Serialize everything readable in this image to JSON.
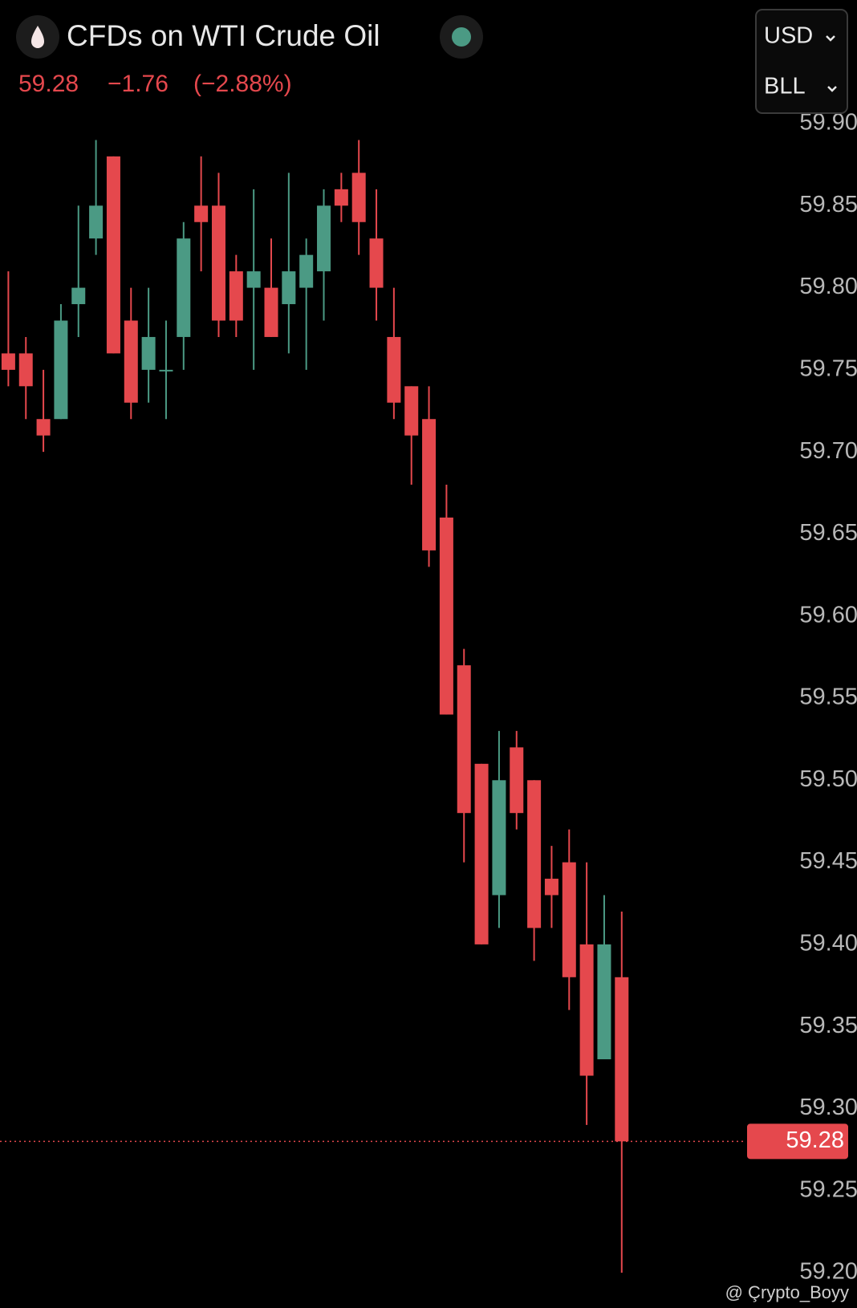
{
  "header": {
    "title": "CFDs on WTI Crude Oil",
    "change": "−1.76",
    "change_percent": "(−2.88%)",
    "currency": "USD",
    "unit": "BLL"
  },
  "watermark": "@ Çrypto_Boyy",
  "chart_data": {
    "type": "candlestick",
    "last_price": 59.28,
    "up_color": "#4b9a84",
    "down_color": "#e5484d",
    "ylim": [
      59.2,
      59.9
    ],
    "yticks": [
      {
        "value": 59.2,
        "label": "59.20"
      },
      59.25,
      {
        "value": 59.3,
        "label": "59.30"
      },
      59.35,
      {
        "value": 59.4,
        "label": "59.40"
      },
      59.45,
      {
        "value": 59.5,
        "label": "59.50"
      },
      59.55,
      {
        "value": 59.6,
        "label": "59.60"
      },
      59.65,
      {
        "value": 59.7,
        "label": "59.70"
      },
      59.75,
      {
        "value": 59.8,
        "label": "59.80"
      },
      59.85,
      {
        "value": 59.9,
        "label": "59.90"
      }
    ],
    "open": [
      59.76,
      59.76,
      59.72,
      59.72,
      59.79,
      59.83,
      59.88,
      59.78,
      59.75,
      59.75,
      59.77,
      59.85,
      59.85,
      59.81,
      59.8,
      59.8,
      59.79,
      59.8,
      59.81,
      59.86,
      59.87,
      59.83,
      59.77,
      59.74,
      59.72,
      59.66,
      59.57,
      59.51,
      59.43,
      59.52,
      59.5,
      59.44,
      59.45,
      59.4,
      59.33,
      59.38
    ],
    "high": [
      59.81,
      59.77,
      59.75,
      59.79,
      59.85,
      59.89,
      59.88,
      59.8,
      59.8,
      59.78,
      59.84,
      59.88,
      59.87,
      59.82,
      59.86,
      59.83,
      59.87,
      59.83,
      59.86,
      59.87,
      59.89,
      59.86,
      59.8,
      59.74,
      59.74,
      59.68,
      59.58,
      59.51,
      59.53,
      59.53,
      59.5,
      59.46,
      59.47,
      59.45,
      59.43,
      59.42
    ],
    "low": [
      59.74,
      59.72,
      59.7,
      59.72,
      59.77,
      59.82,
      59.76,
      59.72,
      59.73,
      59.72,
      59.75,
      59.81,
      59.77,
      59.77,
      59.75,
      59.77,
      59.76,
      59.75,
      59.78,
      59.84,
      59.82,
      59.78,
      59.72,
      59.68,
      59.63,
      59.54,
      59.45,
      59.4,
      59.41,
      59.47,
      59.39,
      59.41,
      59.36,
      59.29,
      59.33,
      59.2
    ],
    "close": [
      59.75,
      59.74,
      59.71,
      59.78,
      59.8,
      59.85,
      59.76,
      59.73,
      59.77,
      59.75,
      59.83,
      59.84,
      59.78,
      59.78,
      59.81,
      59.77,
      59.81,
      59.82,
      59.85,
      59.85,
      59.84,
      59.8,
      59.73,
      59.71,
      59.64,
      59.54,
      59.48,
      59.4,
      59.5,
      59.48,
      59.41,
      59.43,
      59.38,
      59.32,
      59.4,
      59.28
    ]
  }
}
